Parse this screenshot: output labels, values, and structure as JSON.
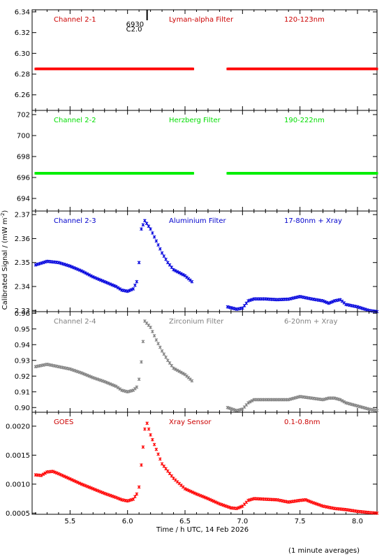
{
  "figure": {
    "ylabel": "Calibrated Signal / (mW m",
    "ylabel_sup": "-2",
    "ylabel_close": ")",
    "xlabel": "Time / h UTC, 14 Feb 2026",
    "footnote": "(1 minute averages)",
    "xlim": [
      5.17,
      8.17
    ],
    "xticks": [
      5.5,
      6.0,
      6.5,
      7.0,
      7.5,
      8.0
    ],
    "xtick_labels": [
      "5.5",
      "6.0",
      "6.5",
      "7.0",
      "7.5",
      "8.0"
    ],
    "event_marker": {
      "x": 6.17,
      "label_top": "6930",
      "label_bottom": "C2.0"
    }
  },
  "chart_data": [
    {
      "type": "scatter",
      "channel": "Channel 2-1",
      "filter": "Lyman-alpha Filter",
      "band": "120-123nm",
      "color": "#ff0000",
      "label_color": "#cc0000",
      "ylim": [
        6.245,
        6.342
      ],
      "yticks": [
        6.26,
        6.28,
        6.3,
        6.32,
        6.34
      ],
      "ytick_labels": [
        "6.26",
        "6.28",
        "6.30",
        "6.32",
        "6.34"
      ],
      "segments": [
        {
          "x": [
            5.2,
            6.57
          ],
          "y": [
            6.285,
            6.285
          ]
        },
        {
          "x": [
            6.87,
            8.17
          ],
          "y": [
            6.285,
            6.285
          ]
        }
      ]
    },
    {
      "type": "scatter",
      "channel": "Channel 2-2",
      "filter": "Herzberg Filter",
      "band": "190-222nm",
      "color": "#00ee00",
      "label_color": "#00dd00",
      "ylim": [
        692.8,
        702.4
      ],
      "yticks": [
        694,
        696,
        698,
        700,
        702
      ],
      "ytick_labels": [
        "694",
        "696",
        "698",
        "700",
        "702"
      ],
      "segments": [
        {
          "x": [
            5.2,
            6.57
          ],
          "y": [
            696.4,
            696.4
          ]
        },
        {
          "x": [
            6.87,
            8.17
          ],
          "y": [
            696.4,
            696.4
          ]
        }
      ]
    },
    {
      "type": "scatter",
      "channel": "Channel 2-3",
      "filter": "Aluminium Filter",
      "band": "17-80nm + Xray",
      "color": "#0000dd",
      "label_color": "#0000cc",
      "ylim": [
        2.3295,
        2.3715
      ],
      "yticks": [
        2.33,
        2.34,
        2.35,
        2.36,
        2.37
      ],
      "ytick_labels": [
        "2.33",
        "2.34",
        "2.35",
        "2.36",
        "2.37"
      ],
      "segments": [
        {
          "x": [
            5.2,
            5.3,
            5.4,
            5.5,
            5.6,
            5.7,
            5.8,
            5.9,
            5.95,
            6.0,
            6.05,
            6.08,
            6.1,
            6.12,
            6.15,
            6.2,
            6.25,
            6.3,
            6.35,
            6.4,
            6.5,
            6.56
          ],
          "y": [
            2.349,
            2.3505,
            2.35,
            2.3485,
            2.3465,
            2.344,
            2.342,
            2.34,
            2.3385,
            2.338,
            2.339,
            2.342,
            2.35,
            2.364,
            2.3675,
            2.364,
            2.359,
            2.354,
            2.35,
            2.347,
            2.3445,
            2.342
          ]
        },
        {
          "x": [
            6.87,
            6.95,
            7.0,
            7.05,
            7.1,
            7.2,
            7.3,
            7.4,
            7.5,
            7.6,
            7.7,
            7.75,
            7.8,
            7.85,
            7.9,
            8.0,
            8.1,
            8.17
          ],
          "y": [
            2.3315,
            2.3305,
            2.331,
            2.334,
            2.3348,
            2.3348,
            2.3345,
            2.3347,
            2.3358,
            2.3348,
            2.334,
            2.333,
            2.334,
            2.3345,
            2.3325,
            2.3315,
            2.33,
            2.3295
          ]
        }
      ]
    },
    {
      "type": "scatter",
      "channel": "Channel 2-4",
      "filter": "Zirconium Filter",
      "band": "6-20nm + Xray",
      "color": "#808080",
      "label_color": "#808080",
      "ylim": [
        0.897,
        0.961
      ],
      "yticks": [
        0.9,
        0.91,
        0.92,
        0.93,
        0.94,
        0.95,
        0.96
      ],
      "ytick_labels": [
        "0.90",
        "0.91",
        "0.92",
        "0.93",
        "0.94",
        "0.95",
        "0.96"
      ],
      "segments": [
        {
          "x": [
            5.2,
            5.3,
            5.4,
            5.5,
            5.6,
            5.7,
            5.8,
            5.9,
            5.95,
            6.0,
            6.05,
            6.08,
            6.1,
            6.12,
            6.15,
            6.2,
            6.25,
            6.3,
            6.35,
            6.4,
            6.5,
            6.56
          ],
          "y": [
            0.926,
            0.9275,
            0.926,
            0.9245,
            0.922,
            0.919,
            0.9165,
            0.9135,
            0.911,
            0.91,
            0.911,
            0.913,
            0.918,
            0.929,
            0.955,
            0.951,
            0.943,
            0.936,
            0.93,
            0.925,
            0.921,
            0.917
          ]
        },
        {
          "x": [
            6.87,
            6.95,
            7.0,
            7.05,
            7.1,
            7.2,
            7.3,
            7.4,
            7.5,
            7.6,
            7.7,
            7.75,
            7.8,
            7.85,
            7.9,
            8.0,
            8.1,
            8.17
          ],
          "y": [
            0.9,
            0.898,
            0.899,
            0.903,
            0.905,
            0.905,
            0.905,
            0.905,
            0.907,
            0.906,
            0.905,
            0.906,
            0.906,
            0.905,
            0.903,
            0.901,
            0.899,
            0.898
          ]
        }
      ]
    },
    {
      "type": "scatter",
      "channel": "GOES",
      "filter": "Xray Sensor",
      "band": "0.1-0.8nm",
      "color": "#ff0000",
      "label_color": "#cc0000",
      "ylim": [
        0.00048,
        0.00224
      ],
      "yticks": [
        0.0005,
        0.001,
        0.0015,
        0.002
      ],
      "ytick_labels": [
        "0.0005",
        "0.0010",
        "0.0015",
        "0.0020"
      ],
      "segments": [
        {
          "x": [
            5.2,
            5.25,
            5.3,
            5.35,
            5.4,
            5.5,
            5.6,
            5.7,
            5.8,
            5.9,
            5.95,
            6.0,
            6.05,
            6.08,
            6.1,
            6.12,
            6.15,
            6.17,
            6.2,
            6.25,
            6.3,
            6.4,
            6.5,
            6.6,
            6.7,
            6.8,
            6.9,
            6.95,
            7.0,
            7.05,
            7.1,
            7.2,
            7.3,
            7.4,
            7.5,
            7.55,
            7.6,
            7.7,
            7.8,
            7.9,
            8.0,
            8.1,
            8.17
          ],
          "y": [
            0.00116,
            0.00115,
            0.00121,
            0.00122,
            0.00118,
            0.00109,
            0.001,
            0.00092,
            0.00084,
            0.00077,
            0.00073,
            0.00071,
            0.00074,
            0.00083,
            0.00095,
            0.00133,
            0.00195,
            0.00205,
            0.00185,
            0.0016,
            0.00135,
            0.0011,
            0.00092,
            0.00083,
            0.00075,
            0.00066,
            0.00059,
            0.00058,
            0.00062,
            0.00072,
            0.00075,
            0.00074,
            0.00073,
            0.00069,
            0.00072,
            0.00073,
            0.00069,
            0.00062,
            0.00058,
            0.00056,
            0.00053,
            0.00051,
            0.0005
          ]
        }
      ]
    }
  ]
}
